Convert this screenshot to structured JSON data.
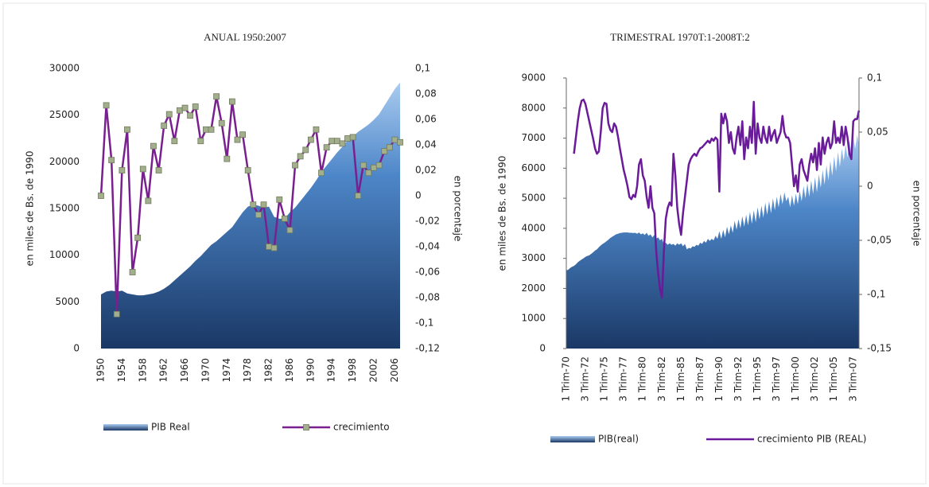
{
  "chart_data": [
    {
      "type": "combo",
      "title": "ANUAL 1950:2007",
      "y_label": "en miles de Bs. de 1990",
      "y2_label": "en porcentaje",
      "legend": "bottom",
      "categories": [
        "1950",
        null,
        null,
        null,
        "1954",
        null,
        null,
        null,
        "1958",
        null,
        null,
        null,
        "1962",
        null,
        null,
        null,
        "1966",
        null,
        null,
        null,
        "1970",
        null,
        null,
        null,
        "1974",
        null,
        null,
        null,
        "1978",
        null,
        null,
        null,
        "1982",
        null,
        null,
        null,
        "1986",
        null,
        null,
        null,
        "1990",
        null,
        null,
        null,
        "1994",
        null,
        null,
        null,
        "1998",
        null,
        null,
        null,
        "2002",
        null,
        null,
        null,
        "2006",
        null
      ],
      "ylim": [
        0,
        30000
      ],
      "yticks": [
        0,
        5000,
        10000,
        15000,
        20000,
        25000,
        30000
      ],
      "y2lim": [
        -0.12,
        0.1
      ],
      "y2ticks": [
        {
          "value": -0.12,
          "label": "-0,12"
        },
        {
          "value": -0.1,
          "label": "-0,1"
        },
        {
          "value": -0.08,
          "label": "-0,08"
        },
        {
          "value": -0.06,
          "label": "-0,06"
        },
        {
          "value": -0.04,
          "label": "-0,04"
        },
        {
          "value": -0.02,
          "label": "-0,02"
        },
        0,
        {
          "value": 0.02,
          "label": "0,02"
        },
        {
          "value": 0.04,
          "label": "0,04"
        },
        {
          "value": 0.06,
          "label": "0,06"
        },
        {
          "value": 0.08,
          "label": "0,08"
        },
        {
          "value": 0.1,
          "label": "0,1"
        }
      ],
      "series": [
        {
          "name": "PIB Real",
          "type": "area",
          "color": "#3a6fb0",
          "values": [
            5800,
            6100,
            6200,
            6100,
            6200,
            5900,
            5800,
            5700,
            5700,
            5800,
            5900,
            6100,
            6400,
            6800,
            7300,
            7800,
            8300,
            8800,
            9400,
            9900,
            10500,
            11100,
            11500,
            12000,
            12500,
            13000,
            13800,
            14600,
            15200,
            15400,
            15300,
            15100,
            15200,
            14100,
            13900,
            13900,
            14600,
            15100,
            15800,
            16500,
            17200,
            18000,
            18900,
            19600,
            20300,
            21000,
            21600,
            22300,
            22700,
            23200,
            23600,
            24000,
            24500,
            25100,
            26000,
            26900,
            27800,
            28500
          ]
        },
        {
          "name": "crecimiento",
          "type": "line",
          "axis": "y2",
          "color": "#7a1f8f",
          "markers": true,
          "marker_color": "#a3ae8c",
          "values": [
            0.0,
            0.071,
            0.028,
            -0.093,
            0.02,
            0.052,
            -0.06,
            -0.033,
            0.021,
            -0.004,
            0.039,
            0.02,
            0.055,
            0.064,
            0.043,
            0.067,
            0.069,
            0.063,
            0.07,
            0.043,
            0.052,
            0.052,
            0.078,
            0.057,
            0.029,
            0.074,
            0.044,
            0.048,
            0.02,
            -0.007,
            -0.015,
            -0.007,
            -0.04,
            -0.041,
            -0.003,
            -0.018,
            -0.027,
            0.024,
            0.031,
            0.036,
            0.044,
            0.052,
            0.018,
            0.038,
            0.043,
            0.043,
            0.041,
            0.045,
            0.046,
            0.0,
            0.024,
            0.018,
            0.022,
            0.024,
            0.035,
            0.038,
            0.044,
            0.042
          ]
        }
      ]
    },
    {
      "type": "combo",
      "title": "TRIMESTRAL 1970T:1-2008T:2",
      "y_label": "en miles de Bs. de 1990",
      "y2_label": "en porcentaje",
      "legend": "bottom",
      "categories": [
        "1 Trim-70",
        null,
        null,
        null,
        null,
        null,
        null,
        null,
        null,
        null,
        "3 Trim-72",
        null,
        null,
        null,
        null,
        null,
        null,
        null,
        null,
        null,
        "1 Trim-75",
        null,
        null,
        null,
        null,
        null,
        null,
        null,
        null,
        null,
        "3 Trim-77",
        null,
        null,
        null,
        null,
        null,
        null,
        null,
        null,
        null,
        "1 Trim-80",
        null,
        null,
        null,
        null,
        null,
        null,
        null,
        null,
        null,
        "3 Trim-82",
        null,
        null,
        null,
        null,
        null,
        null,
        null,
        null,
        null,
        "1 Trim-85",
        null,
        null,
        null,
        null,
        null,
        null,
        null,
        null,
        null,
        "3 Trim-87",
        null,
        null,
        null,
        null,
        null,
        null,
        null,
        null,
        null,
        "1 Trim-90",
        null,
        null,
        null,
        null,
        null,
        null,
        null,
        null,
        null,
        "3 Trim-92",
        null,
        null,
        null,
        null,
        null,
        null,
        null,
        null,
        null,
        "1 Trim-95",
        null,
        null,
        null,
        null,
        null,
        null,
        null,
        null,
        null,
        "3 Trim-97",
        null,
        null,
        null,
        null,
        null,
        null,
        null,
        null,
        null,
        "1 Trim-00",
        null,
        null,
        null,
        null,
        null,
        null,
        null,
        null,
        null,
        "3 Trim-02",
        null,
        null,
        null,
        null,
        null,
        null,
        null,
        null,
        null,
        "1 Trim-05",
        null,
        null,
        null,
        null,
        null,
        null,
        null,
        null,
        null,
        "3 Trim-07",
        null,
        null,
        null
      ],
      "ylim": [
        0,
        9000
      ],
      "yticks": [
        0,
        1000,
        2000,
        3000,
        4000,
        5000,
        6000,
        7000,
        8000,
        9000
      ],
      "y2lim": [
        -0.15,
        0.1
      ],
      "y2ticks": [
        {
          "value": -0.15,
          "label": "-0,15"
        },
        {
          "value": -0.1,
          "label": "-0,1"
        },
        {
          "value": -0.05,
          "label": "-0,05"
        },
        0,
        {
          "value": 0.05,
          "label": "0,05"
        },
        {
          "value": 0.1,
          "label": "0,1"
        }
      ],
      "series": [
        {
          "name": "PIB(real)",
          "type": "area",
          "color": "#3a6fb0",
          "values": [
            2600,
            2620,
            2680,
            2720,
            2750,
            2800,
            2870,
            2920,
            2960,
            3000,
            3050,
            3080,
            3100,
            3150,
            3200,
            3260,
            3300,
            3370,
            3430,
            3480,
            3520,
            3570,
            3620,
            3680,
            3720,
            3760,
            3800,
            3820,
            3840,
            3850,
            3860,
            3860,
            3860,
            3850,
            3850,
            3840,
            3850,
            3820,
            3860,
            3800,
            3830,
            3780,
            3850,
            3750,
            3800,
            3700,
            3780,
            3650,
            3700,
            3600,
            3650,
            3480,
            3520,
            3450,
            3500,
            3450,
            3480,
            3420,
            3500,
            3450,
            3500,
            3400,
            3480,
            3300,
            3350,
            3330,
            3400,
            3380,
            3450,
            3420,
            3520,
            3480,
            3580,
            3520,
            3650,
            3580,
            3650,
            3600,
            3750,
            3650,
            3900,
            3650,
            3950,
            3700,
            4050,
            3800,
            4100,
            3850,
            4250,
            3950,
            4300,
            4000,
            4400,
            4050,
            4450,
            4100,
            4550,
            4150,
            4600,
            4200,
            4700,
            4300,
            4750,
            4350,
            4850,
            4450,
            4900,
            4500,
            5000,
            4600,
            5050,
            4700,
            5150,
            4800,
            5200,
            4900,
            5050,
            4700,
            5100,
            4750,
            5150,
            4800,
            5250,
            4900,
            5400,
            5000,
            5500,
            5050,
            5600,
            5150,
            5700,
            5200,
            5800,
            5350,
            5950,
            5450,
            6100,
            5600,
            6250,
            5750,
            6400,
            5900,
            6550,
            6050,
            6650,
            6250,
            6800,
            6350,
            6950,
            6500,
            7050,
            6650,
            7100,
            6800
          ]
        },
        {
          "name": "crecimiento PIB (REAL)",
          "type": "line",
          "axis": "y2",
          "color": "#6a1b9a",
          "values": [
            null,
            null,
            null,
            null,
            0.03,
            0.045,
            0.06,
            0.072,
            0.079,
            0.08,
            0.076,
            0.068,
            0.06,
            0.052,
            0.044,
            0.035,
            0.03,
            0.032,
            0.05,
            0.072,
            0.077,
            0.076,
            0.058,
            0.052,
            0.05,
            0.058,
            0.055,
            0.046,
            0.035,
            0.025,
            0.015,
            0.008,
            0.0,
            -0.01,
            -0.012,
            -0.008,
            -0.01,
            0.0,
            0.02,
            0.025,
            0.01,
            0.005,
            -0.01,
            -0.02,
            0.0,
            -0.02,
            -0.025,
            -0.06,
            -0.08,
            -0.095,
            -0.103,
            -0.06,
            -0.03,
            -0.02,
            -0.015,
            -0.018,
            0.03,
            0.01,
            -0.02,
            -0.035,
            -0.045,
            -0.025,
            -0.01,
            0.005,
            0.02,
            0.025,
            0.028,
            0.03,
            0.028,
            0.032,
            0.035,
            0.036,
            0.038,
            0.04,
            0.042,
            0.04,
            0.044,
            0.042,
            0.045,
            0.043,
            -0.005,
            0.067,
            0.058,
            0.067,
            0.06,
            0.04,
            0.05,
            0.035,
            0.03,
            0.045,
            0.055,
            0.038,
            0.06,
            0.025,
            0.045,
            0.035,
            0.055,
            0.04,
            0.078,
            0.03,
            0.058,
            0.045,
            0.04,
            0.055,
            0.045,
            0.04,
            0.055,
            0.042,
            0.048,
            0.052,
            0.04,
            0.045,
            0.05,
            0.065,
            0.05,
            0.045,
            0.045,
            0.04,
            0.02,
            0.0,
            0.01,
            -0.005,
            0.02,
            0.025,
            0.015,
            0.01,
            0.005,
            0.02,
            0.03,
            0.022,
            0.035,
            0.015,
            0.04,
            0.02,
            0.045,
            0.03,
            0.04,
            0.045,
            0.035,
            0.04,
            0.06,
            0.04,
            0.045,
            0.04,
            0.055,
            0.038,
            0.055,
            0.045,
            0.03,
            0.025,
            0.06,
            0.062,
            0.062,
            0.07
          ]
        }
      ]
    }
  ]
}
